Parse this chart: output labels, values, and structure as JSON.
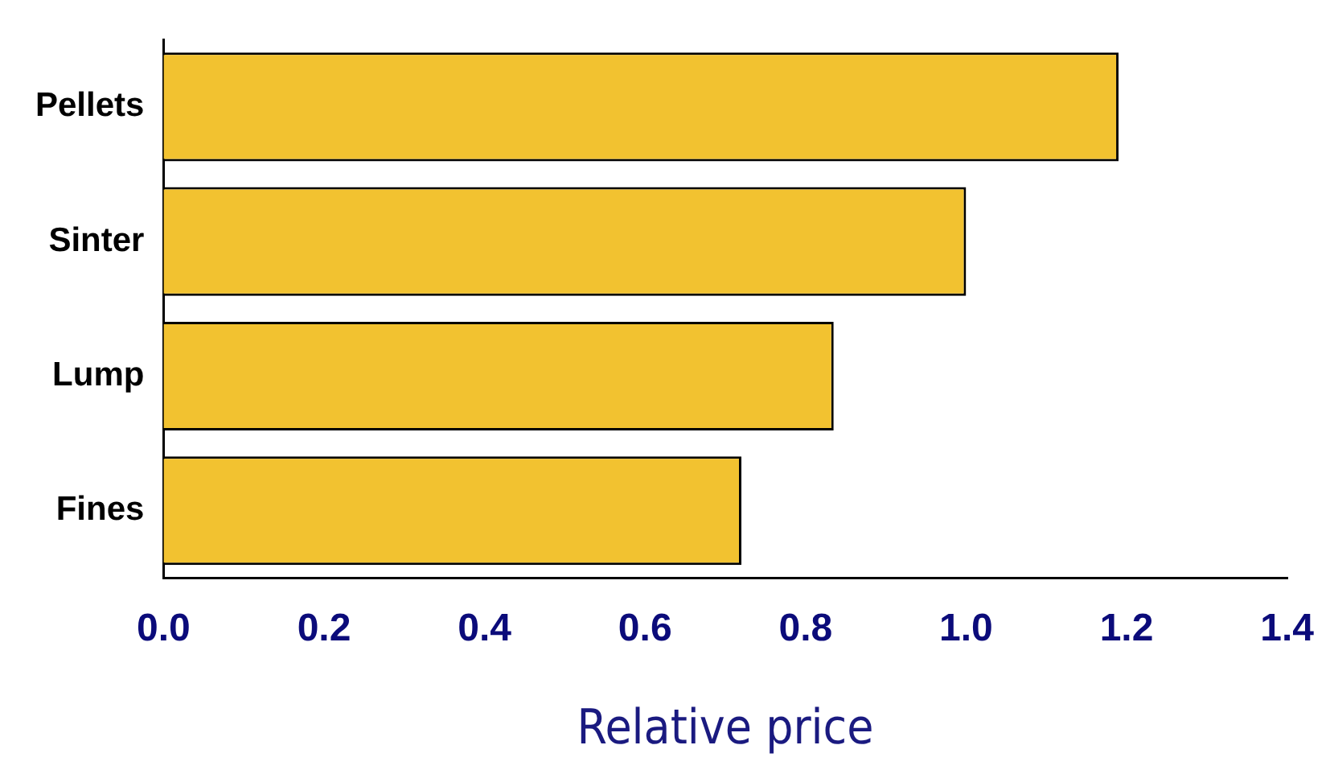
{
  "chart_data": {
    "type": "bar",
    "orientation": "horizontal",
    "xlabel": "Relative price",
    "categories": [
      "Pellets",
      "Sinter",
      "Lump",
      "Fines"
    ],
    "values": [
      1.19,
      1.0,
      0.835,
      0.72
    ],
    "color": "#f2c230",
    "xlim": [
      0,
      1.4
    ],
    "xticks": [
      {
        "value": 0,
        "label": "0.0"
      },
      {
        "value": 0.2,
        "label": "0.2"
      },
      {
        "value": 0.4,
        "label": "0.4"
      },
      {
        "value": 0.6,
        "label": "0.6"
      },
      {
        "value": 0.8,
        "label": "0.8"
      },
      {
        "value": 1,
        "label": "1.0"
      },
      {
        "value": 1.2,
        "label": "1.2"
      },
      {
        "value": 1.4,
        "label": "1.4"
      }
    ],
    "grid": false,
    "legend": false
  }
}
